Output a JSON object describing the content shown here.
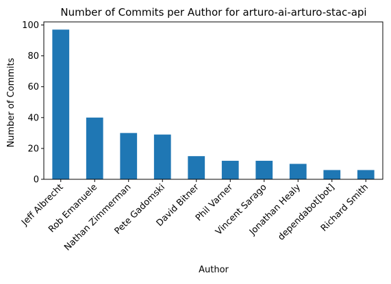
{
  "chart_data": {
    "type": "bar",
    "title": "Number of Commits per Author for arturo-ai-arturo-stac-api",
    "xlabel": "Author",
    "ylabel": "Number of Commits",
    "categories": [
      "Jeff Albrecht",
      "Rob Emanuele",
      "Nathan Zimmerman",
      "Pete Gadomski",
      "David Bitner",
      "Phil Varner",
      "Vincent Sarago",
      "Jonathan Healy",
      "dependabot[bot]",
      "Richard Smith"
    ],
    "values": [
      97,
      40,
      30,
      29,
      15,
      12,
      12,
      10,
      6,
      6
    ],
    "ylim": [
      0,
      102
    ],
    "yticks": [
      0,
      20,
      40,
      60,
      80,
      100
    ],
    "grid": false,
    "legend": "none",
    "bar_color": "#1f77b4"
  }
}
